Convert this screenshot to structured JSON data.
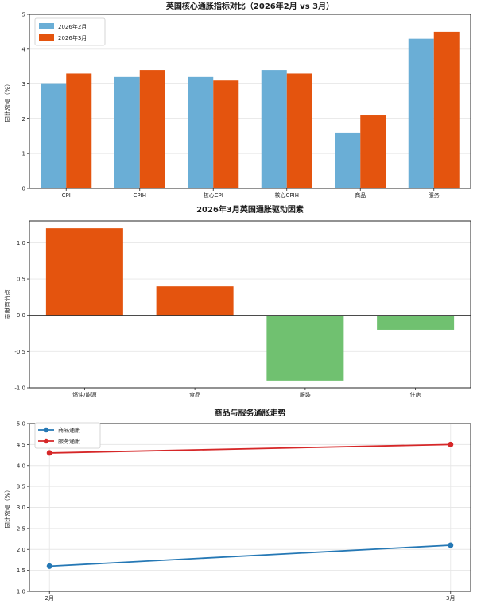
{
  "chart_data": [
    {
      "type": "bar",
      "title": "英国核心通胀指标对比（2026年2月 vs 3月）",
      "ylabel": "同比涨幅（%）",
      "categories": [
        "CPI",
        "CPIH",
        "核心CPI",
        "核心CPIH",
        "商品",
        "服务"
      ],
      "series": [
        {
          "name": "2026年2月",
          "color": "#6aaed6",
          "values": [
            3.0,
            3.2,
            3.2,
            3.4,
            1.6,
            4.3
          ]
        },
        {
          "name": "2026年3月",
          "color": "#e4540e",
          "values": [
            3.3,
            3.4,
            3.1,
            3.3,
            2.1,
            4.5
          ]
        }
      ],
      "ylim": [
        0,
        5
      ],
      "ytick_values": [
        0,
        1,
        2,
        3,
        4,
        5
      ],
      "ytick_labels": [
        "0",
        "1",
        "2",
        "3",
        "4",
        "5"
      ],
      "legend_position": "upper-left",
      "grid": true
    },
    {
      "type": "bar",
      "title": "2026年3月英国通胀驱动因素",
      "ylabel": "贡献百分点",
      "categories": [
        "燃油/能源",
        "食品",
        "服装",
        "住房"
      ],
      "values": [
        1.2,
        0.4,
        -0.9,
        -0.2
      ],
      "positive_color": "#e4540e",
      "negative_color": "#70c170",
      "ylim": [
        -1.0,
        1.3
      ],
      "ytick_values": [
        -1.0,
        -0.5,
        0.0,
        0.5,
        1.0
      ],
      "ytick_labels": [
        "-1.0",
        "-0.5",
        "0.0",
        "0.5",
        "1.0"
      ],
      "zero_line": true,
      "grid": true
    },
    {
      "type": "line",
      "title": "商品与服务通胀走势",
      "ylabel": "同比涨幅（%）",
      "x_categories": [
        "2月",
        "3月"
      ],
      "series": [
        {
          "name": "商品通胀",
          "color": "#2578b5",
          "values": [
            1.6,
            2.1
          ]
        },
        {
          "name": "服务通胀",
          "color": "#d62728",
          "values": [
            4.3,
            4.5
          ]
        }
      ],
      "ylim": [
        1.0,
        5.0
      ],
      "ytick_values": [
        1.0,
        1.5,
        2.0,
        2.5,
        3.0,
        3.5,
        4.0,
        4.5,
        5.0
      ],
      "ytick_labels": [
        "1.0",
        "1.5",
        "2.0",
        "2.5",
        "3.0",
        "3.5",
        "4.0",
        "4.5",
        "5.0"
      ],
      "legend_position": "upper-left",
      "grid": true
    }
  ],
  "style_colors": {
    "grid": "#e7e7e7",
    "spine": "#262626",
    "tick_text": "#262626",
    "legend_border": "#cccccc"
  }
}
